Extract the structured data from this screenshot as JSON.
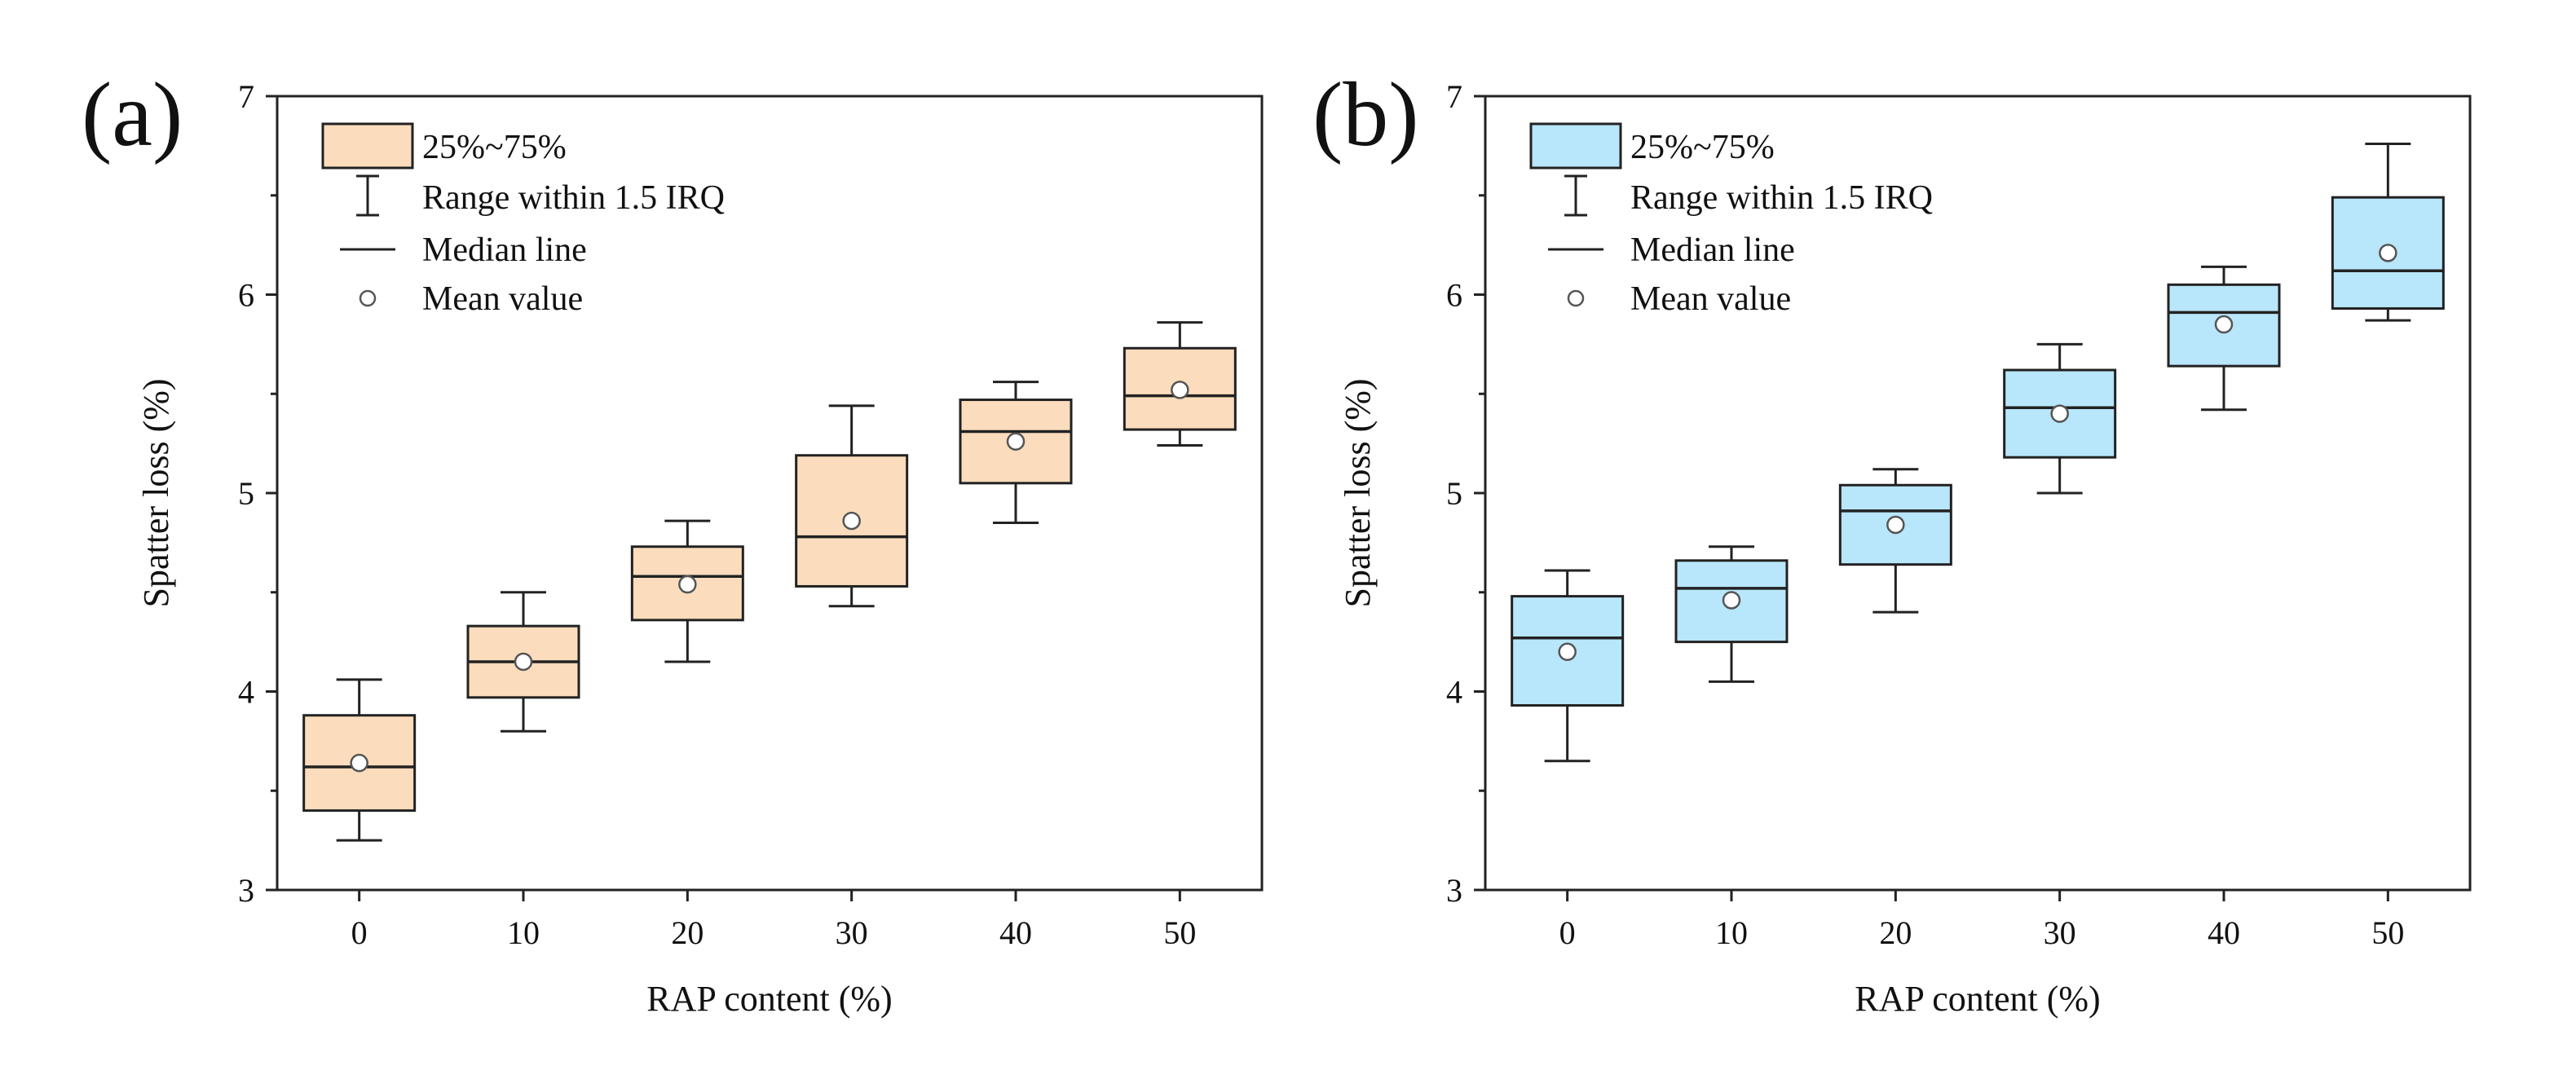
{
  "chart_data": [
    {
      "panel_label": "(a)",
      "type": "box",
      "box_fill": "#fbdcbc",
      "xlabel": "RAP content (%)",
      "ylabel": "Spatter loss (%)",
      "ylim": [
        3,
        7
      ],
      "yticks": [
        "3",
        "4",
        "5",
        "6",
        "7"
      ],
      "categories": [
        "0",
        "10",
        "20",
        "30",
        "40",
        "50"
      ],
      "boxes": [
        {
          "whisker_low": 3.25,
          "q1": 3.4,
          "median": 3.62,
          "q3": 3.88,
          "whisker_high": 4.06,
          "mean": 3.64
        },
        {
          "whisker_low": 3.8,
          "q1": 3.97,
          "median": 4.15,
          "q3": 4.33,
          "whisker_high": 4.5,
          "mean": 4.15
        },
        {
          "whisker_low": 4.15,
          "q1": 4.36,
          "median": 4.58,
          "q3": 4.73,
          "whisker_high": 4.86,
          "mean": 4.54
        },
        {
          "whisker_low": 4.43,
          "q1": 4.53,
          "median": 4.78,
          "q3": 5.19,
          "whisker_high": 5.44,
          "mean": 4.86
        },
        {
          "whisker_low": 4.85,
          "q1": 5.05,
          "median": 5.31,
          "q3": 5.47,
          "whisker_high": 5.56,
          "mean": 5.26
        },
        {
          "whisker_low": 5.24,
          "q1": 5.32,
          "median": 5.49,
          "q3": 5.73,
          "whisker_high": 5.86,
          "mean": 5.52
        }
      ],
      "legend": {
        "position": "top-left",
        "items": [
          "25%~75%",
          "Range within 1.5 IRQ",
          "Median line",
          "Mean value"
        ]
      }
    },
    {
      "panel_label": "(b)",
      "type": "box",
      "box_fill": "#b8e6fa",
      "xlabel": "RAP content (%)",
      "ylabel": "Spatter loss (%)",
      "ylim": [
        3,
        7
      ],
      "yticks": [
        "3",
        "4",
        "5",
        "6",
        "7"
      ],
      "categories": [
        "0",
        "10",
        "20",
        "30",
        "40",
        "50"
      ],
      "boxes": [
        {
          "whisker_low": 3.65,
          "q1": 3.93,
          "median": 4.27,
          "q3": 4.48,
          "whisker_high": 4.61,
          "mean": 4.2
        },
        {
          "whisker_low": 4.05,
          "q1": 4.25,
          "median": 4.52,
          "q3": 4.66,
          "whisker_high": 4.73,
          "mean": 4.46
        },
        {
          "whisker_low": 4.4,
          "q1": 4.64,
          "median": 4.91,
          "q3": 5.04,
          "whisker_high": 5.12,
          "mean": 4.84
        },
        {
          "whisker_low": 5.0,
          "q1": 5.18,
          "median": 5.43,
          "q3": 5.62,
          "whisker_high": 5.75,
          "mean": 5.4
        },
        {
          "whisker_low": 5.42,
          "q1": 5.64,
          "median": 5.91,
          "q3": 6.05,
          "whisker_high": 6.14,
          "mean": 5.85
        },
        {
          "whisker_low": 5.87,
          "q1": 5.93,
          "median": 6.12,
          "q3": 6.49,
          "whisker_high": 6.76,
          "mean": 6.21
        }
      ],
      "legend": {
        "position": "top-left",
        "items": [
          "25%~75%",
          "Range within 1.5 IRQ",
          "Median line",
          "Mean value"
        ]
      }
    }
  ]
}
